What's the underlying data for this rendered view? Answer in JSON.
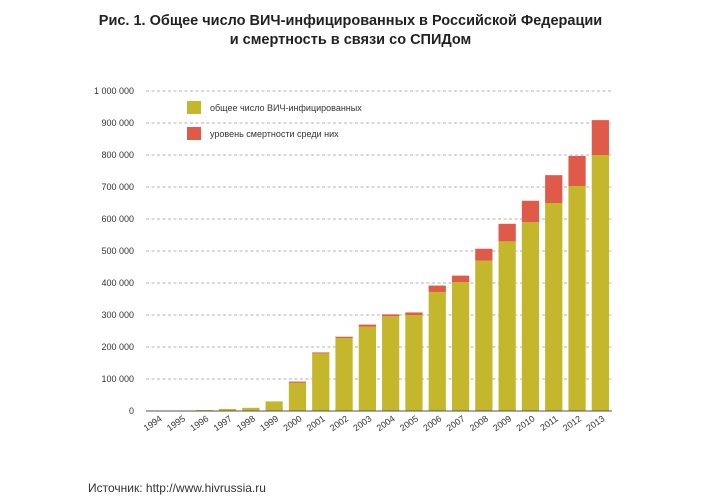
{
  "title_line1": "Рис. 1. Общее число ВИЧ-инфицированных в Российской Федерации",
  "title_line2": "и смертность в связи со СПИДом",
  "source": "Источник: http://www.hivrussia.ru",
  "chart_data": {
    "type": "bar",
    "stacked": true,
    "categories": [
      "1994",
      "1995",
      "1996",
      "1997",
      "1998",
      "1999",
      "2000",
      "2001",
      "2002",
      "2003",
      "2004",
      "2005",
      "2006",
      "2007",
      "2008",
      "2009",
      "2010",
      "2011",
      "2012",
      "2013"
    ],
    "series": [
      {
        "name": "общее число ВИЧ-инфицированных",
        "color": "#c4b72c",
        "values": [
          1000,
          1500,
          3000,
          6500,
          10000,
          30000,
          88000,
          180000,
          228000,
          264000,
          296000,
          300000,
          372000,
          403000,
          470000,
          530000,
          590000,
          650000,
          703000,
          800000
        ]
      },
      {
        "name": "уровень смертности среди них",
        "color": "#e05a4a",
        "values": [
          0,
          0,
          0,
          0,
          0,
          0,
          4000,
          3000,
          4000,
          6000,
          6000,
          8000,
          20000,
          20000,
          37000,
          55000,
          67000,
          87000,
          94000,
          109000
        ]
      }
    ],
    "yticks": [
      "0",
      "100 000",
      "200 000",
      "300 000",
      "400 000",
      "500 000",
      "600 000",
      "700 000",
      "800 000",
      "900 000",
      "1 000 000"
    ],
    "ylim": [
      0,
      1000000
    ],
    "grid": true,
    "legend_position": "top-left"
  }
}
